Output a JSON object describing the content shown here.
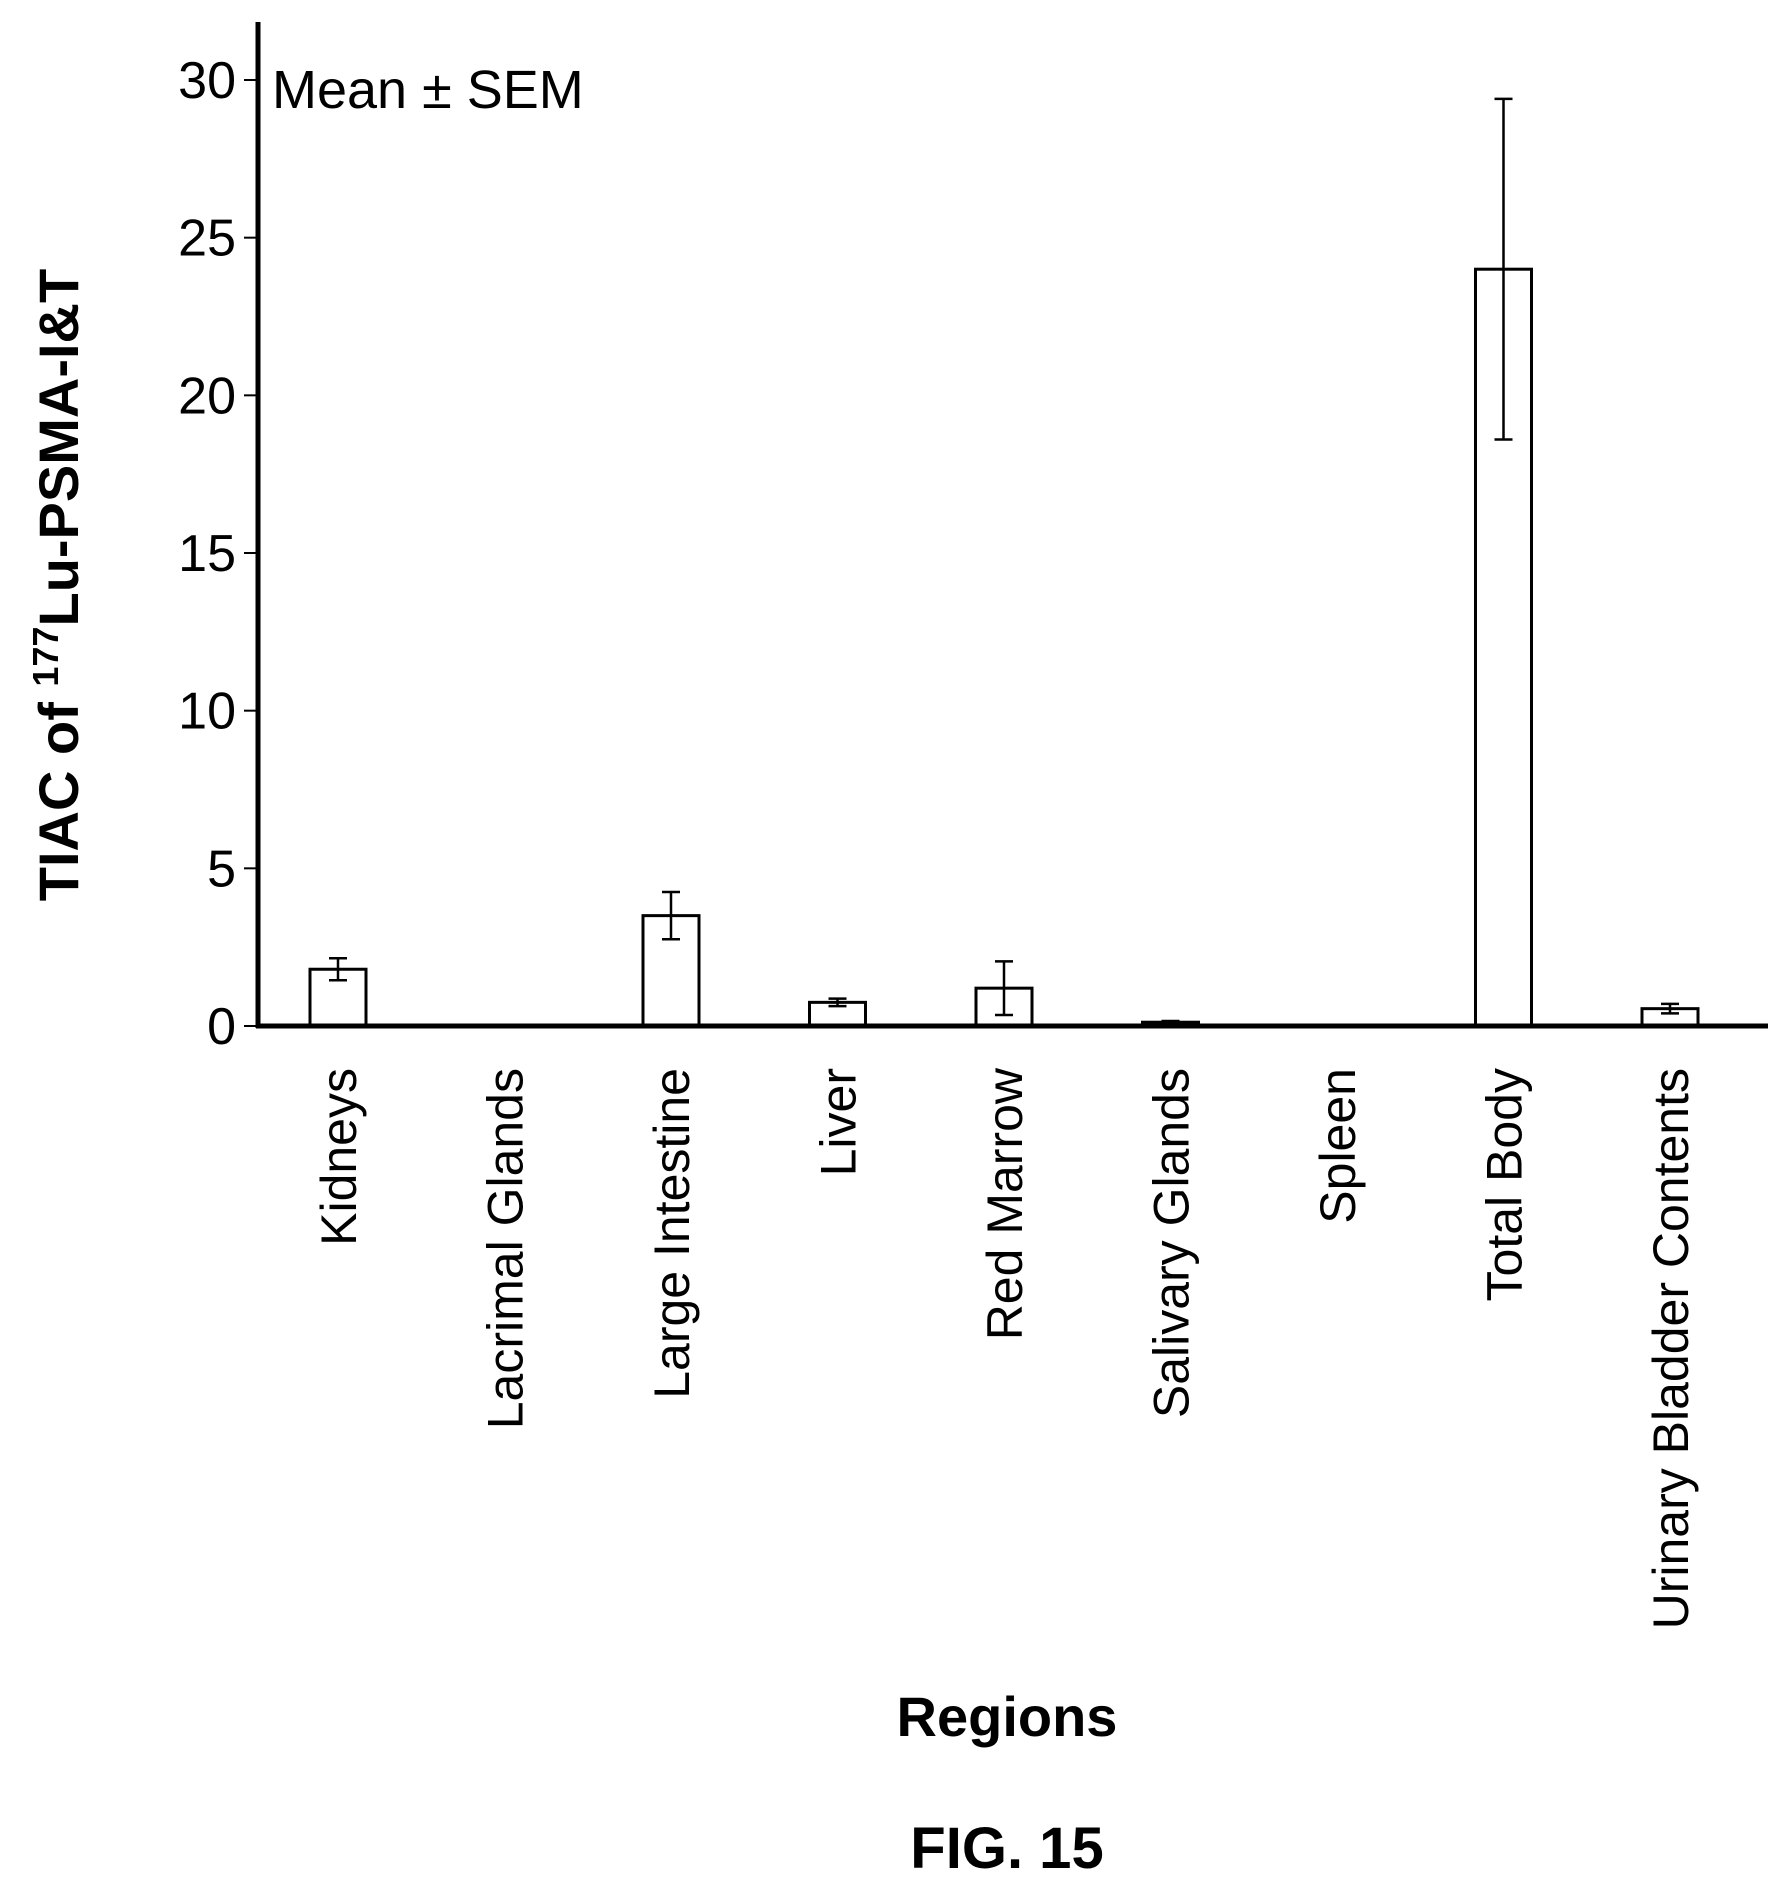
{
  "chart_data": {
    "type": "bar",
    "title": "",
    "annotation": "Mean ± SEM",
    "xlabel": "Regions",
    "ylabel_prefix": "TIAC of ",
    "ylabel_superscript": "177",
    "ylabel_suffix": "Lu-PSMA-I&T",
    "ylim": [
      0,
      30
    ],
    "yticks": [
      "0",
      "5",
      "10",
      "15",
      "20",
      "25",
      "30"
    ],
    "grid": false,
    "categories": [
      "Kidneys",
      "Lacrimal Glands",
      "Large Intestine",
      "Liver",
      "Red Marrow",
      "Salivary Glands",
      "Spleen",
      "Total Body",
      "Urinary Bladder Contents"
    ],
    "values": [
      1.8,
      0.02,
      3.5,
      0.75,
      1.2,
      0.12,
      0.02,
      24.0,
      0.55
    ],
    "error": [
      0.35,
      0.02,
      0.75,
      0.12,
      0.85,
      0.04,
      0.02,
      5.4,
      0.15
    ],
    "bar_fill": "#ffffff",
    "bar_stroke": "#000000"
  },
  "figure": {
    "caption": "FIG. 15"
  }
}
